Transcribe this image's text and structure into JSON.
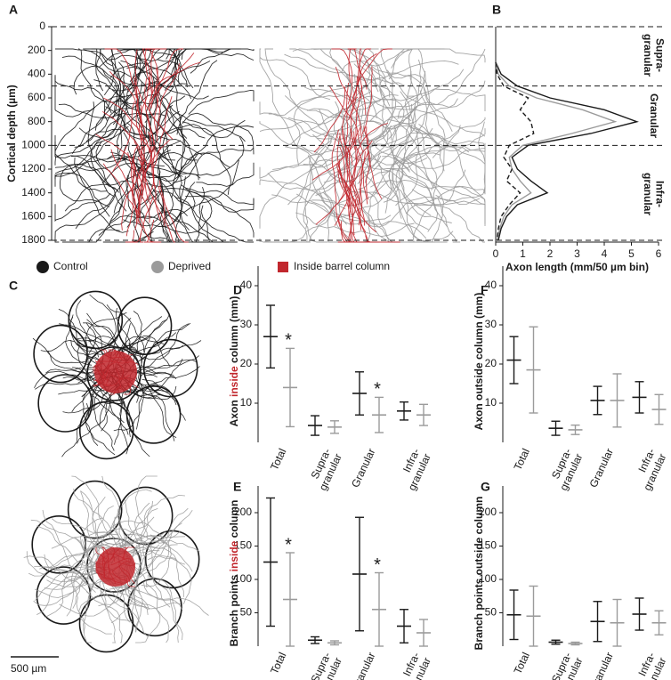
{
  "panel_labels": [
    "A",
    "B",
    "C",
    "D",
    "E",
    "F",
    "G"
  ],
  "scale_bar": "500 µm",
  "chart_data": [
    {
      "type": "morphology",
      "ylabel": "Cortical depth (µm)",
      "ylim": [
        0,
        1800
      ],
      "invert_y": true,
      "yticks": [
        0,
        200,
        400,
        600,
        800,
        1000,
        1200,
        1400,
        1600,
        1800
      ],
      "layer_boundaries": [
        0,
        500,
        1000,
        1800
      ],
      "legend": [
        {
          "name": "Control",
          "color": "#1a1a1a",
          "shape": "circle"
        },
        {
          "name": "Deprived",
          "color": "#9b9b9b",
          "shape": "circle"
        },
        {
          "name": "Inside barrel column",
          "color": "#c1272d",
          "shape": "square"
        }
      ]
    },
    {
      "type": "line",
      "xlabel": "Axon length (mm/50 µm bin)",
      "xlim": [
        0,
        6
      ],
      "xticks": [
        0,
        1,
        2,
        3,
        4,
        5,
        6
      ],
      "ylim": [
        0,
        1800
      ],
      "invert_y": true,
      "depth": [
        300,
        400,
        500,
        600,
        700,
        800,
        900,
        1000,
        1100,
        1200,
        1300,
        1400,
        1500,
        1600,
        1700,
        1800
      ],
      "series": [
        {
          "color": "#1a1a1a",
          "dashed": false,
          "values": [
            0,
            0.2,
            0.8,
            2.0,
            4.0,
            5.2,
            3.5,
            1.2,
            0.6,
            0.8,
            1.3,
            1.9,
            0.8,
            0.4,
            0.2,
            0.1
          ]
        },
        {
          "color": "#9b9b9b",
          "dashed": false,
          "values": [
            0,
            0.1,
            0.5,
            1.5,
            3.2,
            4.4,
            2.8,
            1.0,
            0.5,
            0.6,
            0.9,
            1.3,
            0.6,
            0.3,
            0.15,
            0.05
          ]
        },
        {
          "color": "#1a1a1a",
          "dashed": true,
          "values": [
            0,
            0.05,
            0.3,
            1.2,
            0.9,
            1.3,
            1.4,
            0.5,
            0.3,
            0.6,
            0.4,
            0.9,
            0.5,
            0.2,
            0.1,
            0.05
          ]
        }
      ],
      "layers": [
        [
          "Supra-",
          "granular"
        ],
        [
          "Granular"
        ],
        [
          "Infra-",
          "granular"
        ]
      ]
    },
    {
      "type": "errorbar",
      "ylabel": [
        "Axon ",
        "inside",
        " column (mm)"
      ],
      "highlight_color": "#c1272d",
      "ylim": [
        0,
        45
      ],
      "yticks": [
        10,
        20,
        30,
        40
      ],
      "categories": [
        [
          "Total"
        ],
        [
          "Supra-",
          "granular"
        ],
        [
          "Granular"
        ],
        [
          "Infra-",
          "granular"
        ]
      ],
      "series": [
        {
          "color": "#1a1a1a",
          "values": [
            27,
            4.3,
            12.5,
            8
          ],
          "errors": [
            8,
            2.5,
            5.5,
            2.3
          ]
        },
        {
          "color": "#9b9b9b",
          "values": [
            14,
            3.9,
            7,
            7
          ],
          "errors": [
            10,
            1.6,
            4.5,
            2.7
          ]
        }
      ],
      "annotations": [
        {
          "text": "*",
          "category": 0
        },
        {
          "text": "*",
          "category": 2
        }
      ]
    },
    {
      "type": "errorbar",
      "ylabel": [
        "Branch points ",
        "inside",
        " column"
      ],
      "highlight_color": "#c1272d",
      "ylim": [
        0,
        240
      ],
      "yticks": [
        50,
        100,
        150,
        200
      ],
      "categories": [
        [
          "Total"
        ],
        [
          "Supra-",
          "granular"
        ],
        [
          "Granular"
        ],
        [
          "Infra-",
          "granular"
        ]
      ],
      "series": [
        {
          "color": "#1a1a1a",
          "values": [
            126,
            9,
            108,
            30
          ],
          "errors": [
            96,
            5,
            85,
            25
          ]
        },
        {
          "color": "#9b9b9b",
          "values": [
            70,
            5,
            55,
            20
          ],
          "errors": [
            70,
            3,
            55,
            20
          ]
        }
      ],
      "annotations": [
        {
          "text": "*",
          "category": 0
        },
        {
          "text": "*",
          "category": 2
        }
      ]
    },
    {
      "type": "errorbar",
      "ylabel": "Axon outside column (mm)",
      "ylim": [
        0,
        45
      ],
      "yticks": [
        10,
        20,
        30,
        40
      ],
      "categories": [
        [
          "Total"
        ],
        [
          "Supra-",
          "granular"
        ],
        [
          "Granular"
        ],
        [
          "Infra-",
          "granular"
        ]
      ],
      "series": [
        {
          "color": "#1a1a1a",
          "values": [
            21,
            3.6,
            10.7,
            11.5
          ],
          "errors": [
            6,
            1.8,
            3.6,
            4
          ]
        },
        {
          "color": "#9b9b9b",
          "values": [
            18.5,
            3.2,
            10.7,
            8.4
          ],
          "errors": [
            11,
            1.2,
            6.8,
            3.8
          ]
        }
      ]
    },
    {
      "type": "errorbar",
      "ylabel": "Branch points outside column",
      "ylim": [
        0,
        240
      ],
      "yticks": [
        50,
        100,
        150,
        200
      ],
      "categories": [
        [
          "Total"
        ],
        [
          "Supra-",
          "granular"
        ],
        [
          "Granular"
        ],
        [
          "Infra-",
          "granular"
        ]
      ],
      "series": [
        {
          "color": "#1a1a1a",
          "values": [
            47,
            6,
            37,
            48
          ],
          "errors": [
            37,
            3,
            30,
            24
          ]
        },
        {
          "color": "#9b9b9b",
          "values": [
            45,
            4,
            35,
            35
          ],
          "errors": [
            45,
            2,
            35,
            18
          ]
        }
      ]
    }
  ]
}
